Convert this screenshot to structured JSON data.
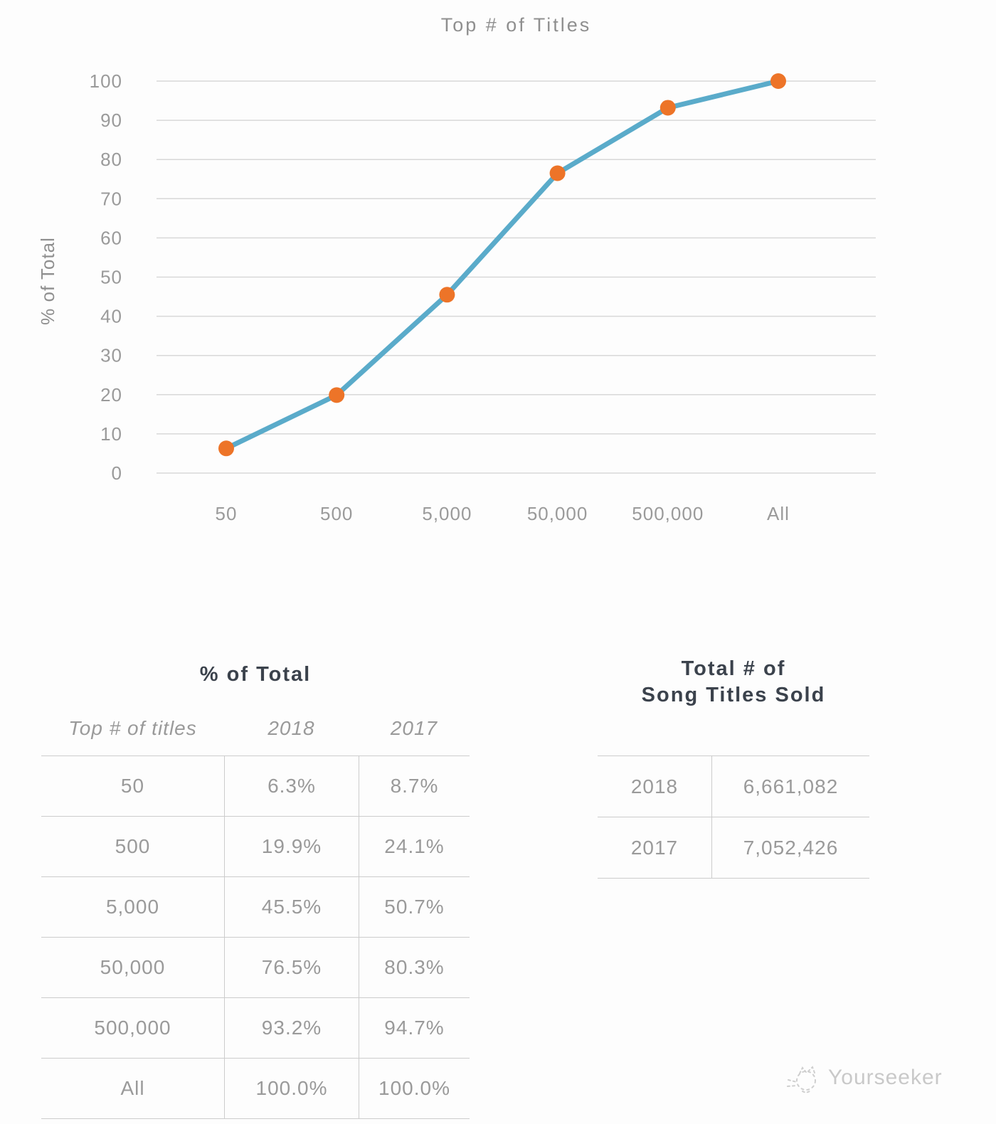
{
  "page": {
    "background": "#fdfdfd"
  },
  "chart": {
    "title": "Top # of Titles",
    "y_axis_label": "% of Total"
  },
  "chart_data": {
    "type": "line",
    "title": "Top # of Titles",
    "categories": [
      "50",
      "500",
      "5,000",
      "50,000",
      "500,000",
      "All"
    ],
    "series": [
      {
        "name": "2018",
        "values": [
          6.3,
          19.9,
          45.5,
          76.5,
          93.2,
          100.0
        ]
      }
    ],
    "xlabel": "",
    "ylabel": "% of Total",
    "ylim": [
      0,
      100
    ],
    "yticks": [
      0,
      10,
      20,
      30,
      40,
      50,
      60,
      70,
      80,
      90,
      100
    ],
    "grid": true,
    "legend": false,
    "line_color": "#5aabca",
    "marker_color": "#ed7428",
    "grid_color": "#d8d8d8",
    "tick_text_color": "#9a9a9a",
    "title_text_color": "#8f8f8f"
  },
  "percent_table": {
    "title": "% of Total",
    "columns": [
      "Top # of titles",
      "2018",
      "2017"
    ],
    "rows": [
      [
        "50",
        "6.3%",
        "8.7%"
      ],
      [
        "500",
        "19.9%",
        "24.1%"
      ],
      [
        "5,000",
        "45.5%",
        "50.7%"
      ],
      [
        "50,000",
        "76.5%",
        "80.3%"
      ],
      [
        "500,000",
        "93.2%",
        "94.7%"
      ],
      [
        "All",
        "100.0%",
        "100.0%"
      ]
    ]
  },
  "totals_table": {
    "title_line1": "Total # of",
    "title_line2": "Song Titles Sold",
    "rows": [
      [
        "2018",
        "6,661,082"
      ],
      [
        "2017",
        "7,052,426"
      ]
    ]
  },
  "watermark": {
    "text": "Yourseeker"
  },
  "theme": {
    "heading_text": "#3b424c",
    "body_text": "#9a9a9a",
    "muted_text": "#8f8f8f",
    "table_line": "#cccccc",
    "watermark_text": "#c9c9c9"
  }
}
